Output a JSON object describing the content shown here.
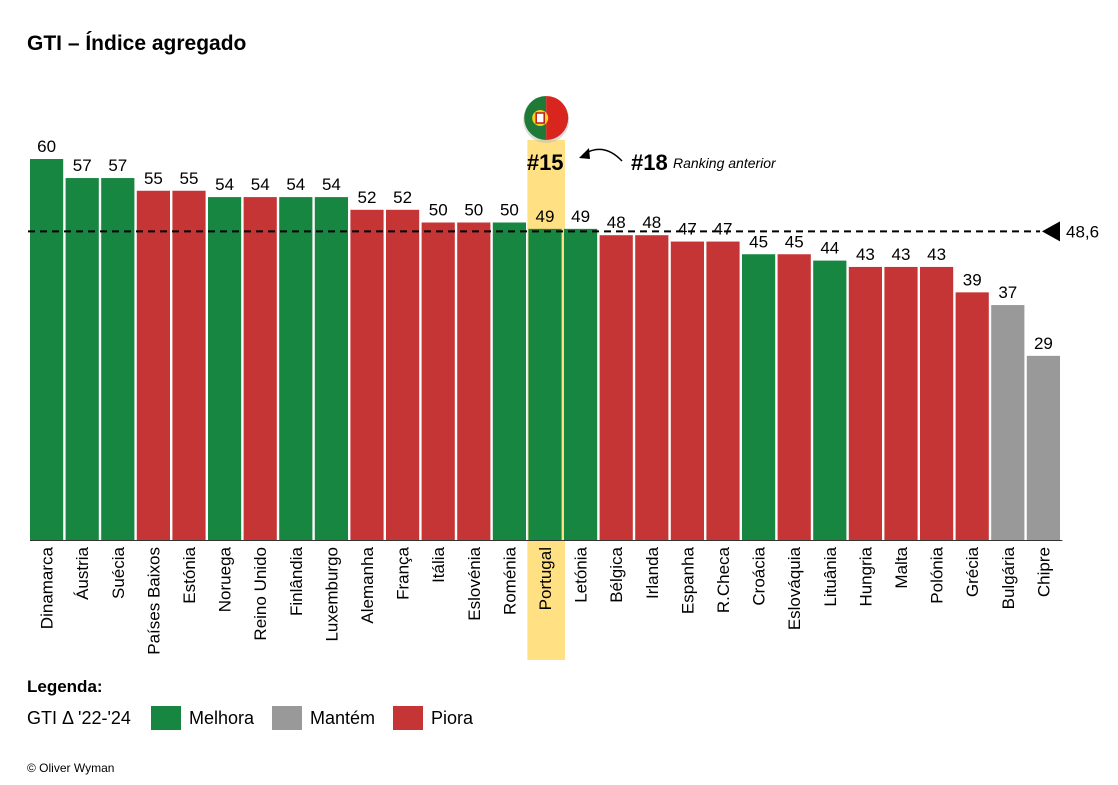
{
  "title": "GTI – Índice agregado",
  "chart_data": {
    "type": "bar",
    "categories": [
      "Dinamarca",
      "Áustria",
      "Suécia",
      "Países Baixos",
      "Estónia",
      "Noruega",
      "Reino Unido",
      "Finlândia",
      "Luxemburgo",
      "Alemanha",
      "França",
      "Itália",
      "Eslovénia",
      "Roménia",
      "Portugal",
      "Letónia",
      "Bélgica",
      "Irlanda",
      "Espanha",
      "R.Checa",
      "Croácia",
      "Eslováquia",
      "Lituânia",
      "Hungria",
      "Malta",
      "Polónia",
      "Grécia",
      "Bulgária",
      "Chipre"
    ],
    "values": [
      60,
      57,
      57,
      55,
      55,
      54,
      54,
      54,
      54,
      52,
      52,
      50,
      50,
      50,
      49,
      49,
      48,
      48,
      47,
      47,
      45,
      45,
      44,
      43,
      43,
      43,
      39,
      37,
      29
    ],
    "value_labels": [
      "60",
      "57",
      "57",
      "55",
      "55",
      "54",
      "54",
      "54",
      "54",
      "52",
      "52",
      "50",
      "50",
      "50",
      "49",
      "49",
      "48",
      "48",
      "47",
      "47",
      "45",
      "45",
      "44",
      "43",
      "43",
      "43",
      "39",
      "37",
      "29"
    ],
    "status": [
      "Melhora",
      "Melhora",
      "Melhora",
      "Piora",
      "Piora",
      "Melhora",
      "Piora",
      "Melhora",
      "Melhora",
      "Piora",
      "Piora",
      "Piora",
      "Piora",
      "Melhora",
      "Melhora",
      "Melhora",
      "Piora",
      "Piora",
      "Piora",
      "Piora",
      "Melhora",
      "Piora",
      "Melhora",
      "Piora",
      "Piora",
      "Piora",
      "Piora",
      "Mantém",
      "Mantém"
    ],
    "average": 48.6,
    "average_label": "48,6",
    "highlight": {
      "category": "Portugal",
      "rank_label": "#15",
      "previous_rank_label": "#18",
      "previous_rank_caption": "Ranking anterior"
    },
    "colors": {
      "Melhora": "#168640",
      "Mantém": "#999999",
      "Piora": "#c63535",
      "highlight": "#ffe083"
    },
    "ylim": [
      0,
      60
    ],
    "grid": false
  },
  "legend": {
    "title": "Legenda:",
    "prefix": "GTI Δ '22-'24",
    "items": [
      {
        "label": "Melhora",
        "color": "#168640"
      },
      {
        "label": "Mantém",
        "color": "#999999"
      },
      {
        "label": "Piora",
        "color": "#c63535"
      }
    ]
  },
  "source": "© Oliver Wyman"
}
